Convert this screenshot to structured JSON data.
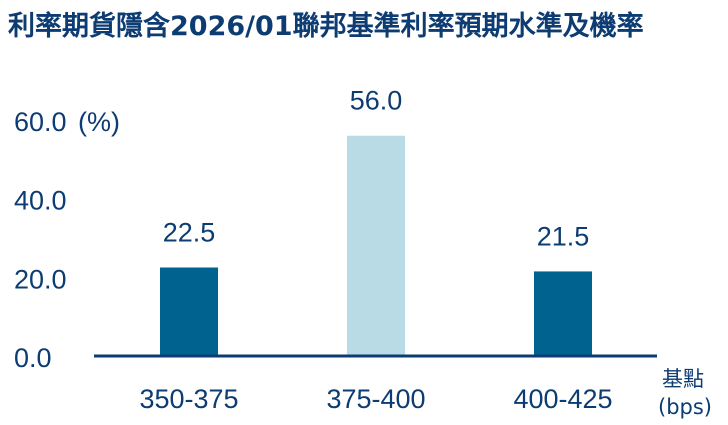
{
  "chart_data": {
    "type": "bar",
    "title": "利率期貨隱含2026/01聯邦基準利率預期水準及機率",
    "categories": [
      "350-375",
      "375-400",
      "400-425"
    ],
    "values": [
      22.5,
      56.0,
      21.5
    ],
    "data_labels": [
      "22.5",
      "56.0",
      "21.5"
    ],
    "yticks": [
      "0.0",
      "20.0",
      "40.0",
      "60.0"
    ],
    "ytick_values": [
      0,
      20,
      40,
      60
    ],
    "ylabel": "(%)",
    "xlabel_line1": "基點",
    "xlabel_line2": "(bps)",
    "ylim": [
      0,
      60
    ],
    "grid": false,
    "colors": {
      "highlight": "#b8dbe6",
      "normal": "#00628f",
      "axis": "#0d3c73",
      "text": "#0d3c73"
    },
    "highlight_index": 1
  }
}
